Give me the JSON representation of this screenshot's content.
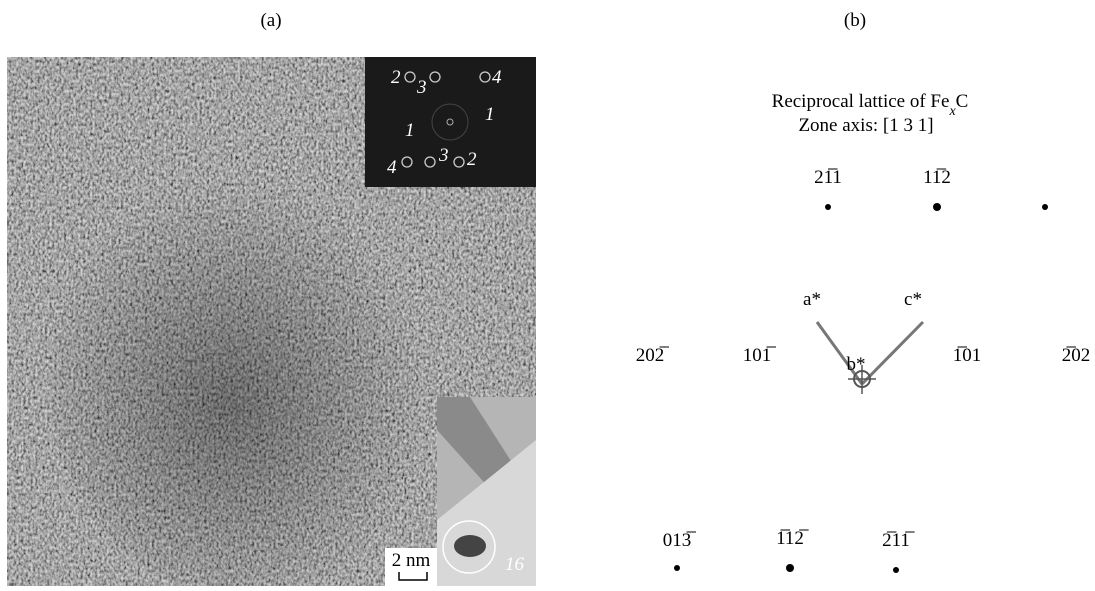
{
  "panels": {
    "a": {
      "label": "(a)",
      "fft_labels": [
        "2",
        "3",
        "4",
        "1",
        "1",
        "4",
        "3",
        "2"
      ],
      "inset_label": "16",
      "scale_bar": "2 nm"
    },
    "b": {
      "label": "(b)",
      "title_parts": [
        "Reciprocal lattice of Fe",
        "x",
        "C"
      ],
      "zone_axis": "Zone axis: [1 3 1]",
      "spots": [
        "21̅1",
        "11̅2",
        "202̅",
        "101̅",
        "1̅01",
        "2̅02",
        "013̅",
        "1̅12̅",
        "2̅11̅"
      ],
      "axes": [
        "a*",
        "b*",
        "c*"
      ]
    }
  }
}
